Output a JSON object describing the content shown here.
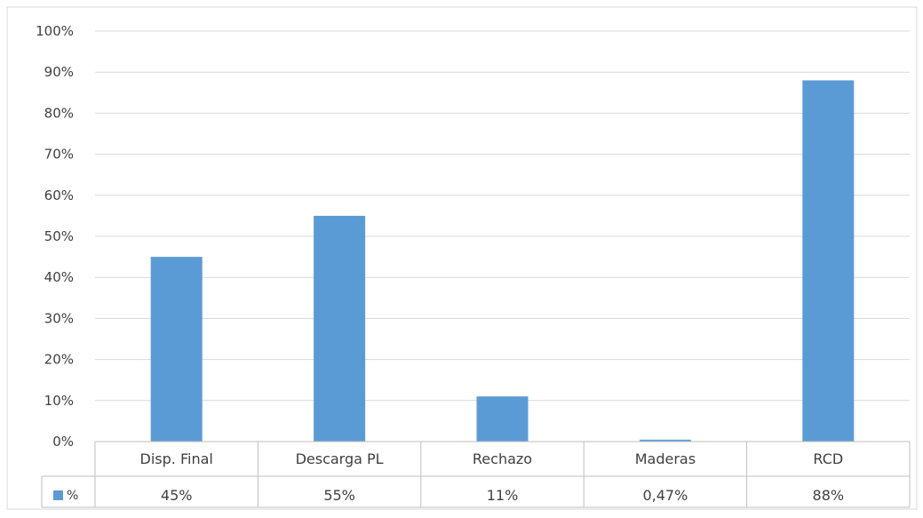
{
  "chart_data": {
    "type": "bar",
    "title": "",
    "xlabel": "",
    "ylabel": "",
    "categories": [
      "Disp. Final",
      "Descarga PL",
      "Rechazo",
      "Maderas",
      "RCD"
    ],
    "series": [
      {
        "name": "%",
        "values": [
          45,
          55,
          11,
          0.47,
          88
        ],
        "value_labels": [
          "45%",
          "55%",
          "11%",
          "0,47%",
          "88%"
        ]
      }
    ],
    "ylim": [
      0,
      100
    ],
    "y_ticks": [
      0,
      10,
      20,
      30,
      40,
      50,
      60,
      70,
      80,
      90,
      100
    ],
    "y_tick_labels": [
      "0%",
      "10%",
      "20%",
      "30%",
      "40%",
      "50%",
      "60%",
      "70%",
      "80%",
      "90%",
      "100%"
    ],
    "grid": true,
    "legend": "data-table",
    "bar_color": "#5B9BD5",
    "grid_color": "#D9D9D9",
    "axis_color": "#BFBFBF",
    "text_color": "#404040"
  }
}
